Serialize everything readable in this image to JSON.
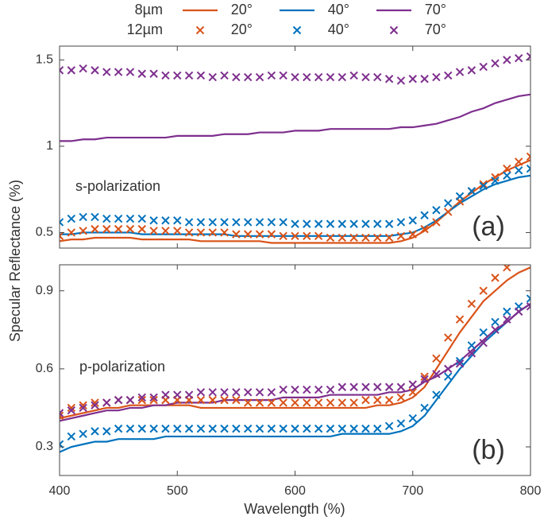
{
  "chart_data": [
    {
      "type": "line",
      "ylabel": "Specular Reflectance (%)",
      "legend_rows": [
        "8µm",
        "12µm"
      ],
      "label": "s-polarization",
      "panel_label": "(a)",
      "xlim": [
        400,
        800
      ],
      "xticks": [
        400,
        500,
        600,
        700,
        800
      ],
      "ylim": [
        0.41,
        1.58
      ],
      "yticks": [
        0.5,
        1,
        1.5
      ],
      "x": [
        400,
        410,
        420,
        430,
        440,
        450,
        460,
        470,
        480,
        490,
        500,
        510,
        520,
        530,
        540,
        550,
        560,
        570,
        580,
        590,
        600,
        610,
        620,
        630,
        640,
        650,
        660,
        670,
        680,
        690,
        700,
        710,
        720,
        730,
        740,
        750,
        760,
        770,
        780,
        790,
        800
      ],
      "series": [
        {
          "name": "20°",
          "style": "line",
          "color": "#d95319",
          "values": [
            0.45,
            0.46,
            0.46,
            0.47,
            0.47,
            0.47,
            0.47,
            0.46,
            0.46,
            0.46,
            0.46,
            0.46,
            0.45,
            0.45,
            0.45,
            0.45,
            0.45,
            0.45,
            0.44,
            0.44,
            0.44,
            0.44,
            0.44,
            0.44,
            0.44,
            0.44,
            0.44,
            0.44,
            0.44,
            0.45,
            0.47,
            0.51,
            0.56,
            0.62,
            0.68,
            0.73,
            0.78,
            0.82,
            0.86,
            0.89,
            0.92
          ]
        },
        {
          "name": "40°",
          "style": "line",
          "color": "#0072bd",
          "values": [
            0.49,
            0.49,
            0.5,
            0.5,
            0.5,
            0.5,
            0.5,
            0.49,
            0.49,
            0.49,
            0.49,
            0.49,
            0.49,
            0.49,
            0.49,
            0.48,
            0.48,
            0.48,
            0.48,
            0.48,
            0.48,
            0.48,
            0.48,
            0.48,
            0.48,
            0.48,
            0.48,
            0.48,
            0.48,
            0.49,
            0.5,
            0.53,
            0.57,
            0.62,
            0.67,
            0.71,
            0.75,
            0.78,
            0.8,
            0.82,
            0.83
          ]
        },
        {
          "name": "70°",
          "style": "line",
          "color": "#7e2f8e",
          "values": [
            1.03,
            1.03,
            1.04,
            1.04,
            1.05,
            1.05,
            1.05,
            1.05,
            1.05,
            1.05,
            1.06,
            1.06,
            1.06,
            1.06,
            1.07,
            1.07,
            1.07,
            1.08,
            1.08,
            1.08,
            1.09,
            1.09,
            1.09,
            1.1,
            1.1,
            1.1,
            1.1,
            1.1,
            1.1,
            1.11,
            1.11,
            1.12,
            1.13,
            1.15,
            1.17,
            1.2,
            1.22,
            1.25,
            1.27,
            1.29,
            1.3
          ]
        },
        {
          "name": "20°",
          "style": "cross",
          "color": "#d95319",
          "values": [
            0.48,
            0.5,
            0.51,
            0.52,
            0.52,
            0.52,
            0.52,
            0.52,
            0.51,
            0.51,
            0.51,
            0.5,
            0.5,
            0.5,
            0.5,
            0.49,
            0.49,
            0.49,
            0.49,
            0.48,
            0.48,
            0.48,
            0.48,
            0.47,
            0.47,
            0.47,
            0.47,
            0.47,
            0.47,
            0.48,
            0.49,
            0.52,
            0.56,
            0.62,
            0.68,
            0.74,
            0.78,
            0.82,
            0.87,
            0.91,
            0.94
          ]
        },
        {
          "name": "40°",
          "style": "cross",
          "color": "#0072bd",
          "values": [
            0.56,
            0.58,
            0.59,
            0.59,
            0.58,
            0.58,
            0.58,
            0.58,
            0.57,
            0.57,
            0.57,
            0.56,
            0.56,
            0.56,
            0.56,
            0.56,
            0.56,
            0.56,
            0.56,
            0.56,
            0.55,
            0.55,
            0.55,
            0.55,
            0.55,
            0.55,
            0.55,
            0.55,
            0.55,
            0.56,
            0.57,
            0.6,
            0.63,
            0.67,
            0.71,
            0.74,
            0.77,
            0.8,
            0.83,
            0.86,
            0.87
          ]
        },
        {
          "name": "70°",
          "style": "cross",
          "color": "#7e2f8e",
          "values": [
            1.44,
            1.44,
            1.45,
            1.44,
            1.43,
            1.43,
            1.43,
            1.42,
            1.42,
            1.41,
            1.41,
            1.41,
            1.41,
            1.4,
            1.41,
            1.4,
            1.4,
            1.4,
            1.41,
            1.41,
            1.4,
            1.4,
            1.4,
            1.4,
            1.4,
            1.41,
            1.4,
            1.4,
            1.39,
            1.38,
            1.39,
            1.39,
            1.4,
            1.41,
            1.43,
            1.44,
            1.46,
            1.48,
            1.5,
            1.51,
            1.52
          ]
        }
      ]
    },
    {
      "type": "line",
      "xlabel": "Wavelength (%)",
      "label": "p-polarization",
      "panel_label": "(b)",
      "xlim": [
        400,
        800
      ],
      "xticks": [
        400,
        500,
        600,
        700,
        800
      ],
      "ylim": [
        0.19,
        1.0
      ],
      "yticks": [
        0.3,
        0.6,
        0.9
      ],
      "x": [
        400,
        410,
        420,
        430,
        440,
        450,
        460,
        470,
        480,
        490,
        500,
        510,
        520,
        530,
        540,
        550,
        560,
        570,
        580,
        590,
        600,
        610,
        620,
        630,
        640,
        650,
        660,
        670,
        680,
        690,
        700,
        710,
        720,
        730,
        740,
        750,
        760,
        770,
        780,
        790,
        800
      ],
      "series": [
        {
          "style": "line",
          "color": "#d95319",
          "values": [
            0.41,
            0.42,
            0.43,
            0.44,
            0.45,
            0.45,
            0.46,
            0.46,
            0.46,
            0.46,
            0.46,
            0.46,
            0.45,
            0.45,
            0.45,
            0.45,
            0.45,
            0.45,
            0.45,
            0.45,
            0.45,
            0.45,
            0.45,
            0.45,
            0.45,
            0.45,
            0.45,
            0.46,
            0.46,
            0.47,
            0.49,
            0.53,
            0.6,
            0.67,
            0.74,
            0.8,
            0.86,
            0.9,
            0.94,
            0.97,
            0.99
          ]
        },
        {
          "style": "line",
          "color": "#0072bd",
          "values": [
            0.28,
            0.3,
            0.31,
            0.32,
            0.32,
            0.33,
            0.33,
            0.33,
            0.33,
            0.34,
            0.34,
            0.34,
            0.34,
            0.34,
            0.34,
            0.34,
            0.34,
            0.34,
            0.34,
            0.34,
            0.34,
            0.34,
            0.34,
            0.34,
            0.35,
            0.35,
            0.35,
            0.35,
            0.35,
            0.36,
            0.38,
            0.42,
            0.48,
            0.54,
            0.6,
            0.65,
            0.7,
            0.74,
            0.78,
            0.82,
            0.85
          ]
        },
        {
          "style": "line",
          "color": "#7e2f8e",
          "values": [
            0.4,
            0.41,
            0.42,
            0.43,
            0.44,
            0.44,
            0.45,
            0.45,
            0.46,
            0.46,
            0.47,
            0.47,
            0.47,
            0.47,
            0.48,
            0.48,
            0.48,
            0.48,
            0.48,
            0.49,
            0.49,
            0.49,
            0.49,
            0.5,
            0.5,
            0.5,
            0.5,
            0.5,
            0.51,
            0.51,
            0.52,
            0.55,
            0.57,
            0.6,
            0.63,
            0.67,
            0.71,
            0.75,
            0.78,
            0.82,
            0.85
          ]
        },
        {
          "style": "cross",
          "color": "#d95319",
          "values": [
            0.42,
            0.45,
            0.46,
            0.47,
            0.47,
            0.48,
            0.48,
            0.48,
            0.48,
            0.48,
            0.48,
            0.48,
            0.48,
            0.48,
            0.48,
            0.48,
            0.47,
            0.47,
            0.47,
            0.47,
            0.47,
            0.47,
            0.47,
            0.47,
            0.47,
            0.47,
            0.48,
            0.48,
            0.48,
            0.49,
            0.51,
            0.57,
            0.64,
            0.72,
            0.79,
            0.85,
            0.9,
            0.95,
            0.99,
            null,
            null
          ]
        },
        {
          "style": "cross",
          "color": "#0072bd",
          "values": [
            0.31,
            0.34,
            0.35,
            0.36,
            0.36,
            0.37,
            0.37,
            0.37,
            0.37,
            0.37,
            0.37,
            0.37,
            0.37,
            0.37,
            0.37,
            0.37,
            0.37,
            0.37,
            0.37,
            0.37,
            0.37,
            0.37,
            0.37,
            0.37,
            0.37,
            0.37,
            0.37,
            0.37,
            0.38,
            0.39,
            0.41,
            0.45,
            0.5,
            0.57,
            0.63,
            0.69,
            0.74,
            0.78,
            0.82,
            0.84,
            0.87
          ]
        },
        {
          "style": "cross",
          "color": "#7e2f8e",
          "values": [
            0.43,
            0.44,
            0.45,
            0.46,
            0.47,
            0.48,
            0.48,
            0.49,
            0.49,
            0.5,
            0.5,
            0.5,
            0.51,
            0.51,
            0.51,
            0.51,
            0.51,
            0.51,
            0.51,
            0.52,
            0.52,
            0.52,
            0.52,
            0.52,
            0.53,
            0.53,
            0.53,
            0.53,
            0.53,
            0.53,
            0.54,
            0.56,
            0.58,
            0.6,
            0.62,
            0.66,
            0.7,
            0.75,
            0.79,
            0.82,
            0.84
          ]
        }
      ]
    }
  ]
}
